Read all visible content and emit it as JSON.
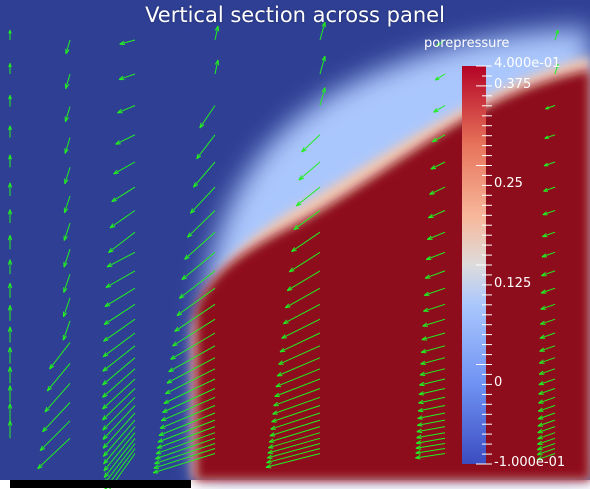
{
  "title": "Vertical section across panel",
  "colorbar": {
    "title": "porepressure",
    "max_label": "4.000e-01",
    "min_label": "-1.000e-01",
    "tick_labels": [
      "0.375",
      "0.25",
      "0.125",
      "0"
    ],
    "range": [
      -0.1,
      0.4
    ],
    "colors": {
      "low": "#3b4cc0",
      "mid": "#dddddd",
      "high": "#b40426",
      "deep_low": "#2f3f94",
      "deep_high": "#8e0b1e"
    }
  },
  "vector_color": "#22ee22",
  "panel_bar_color": "#000000"
}
